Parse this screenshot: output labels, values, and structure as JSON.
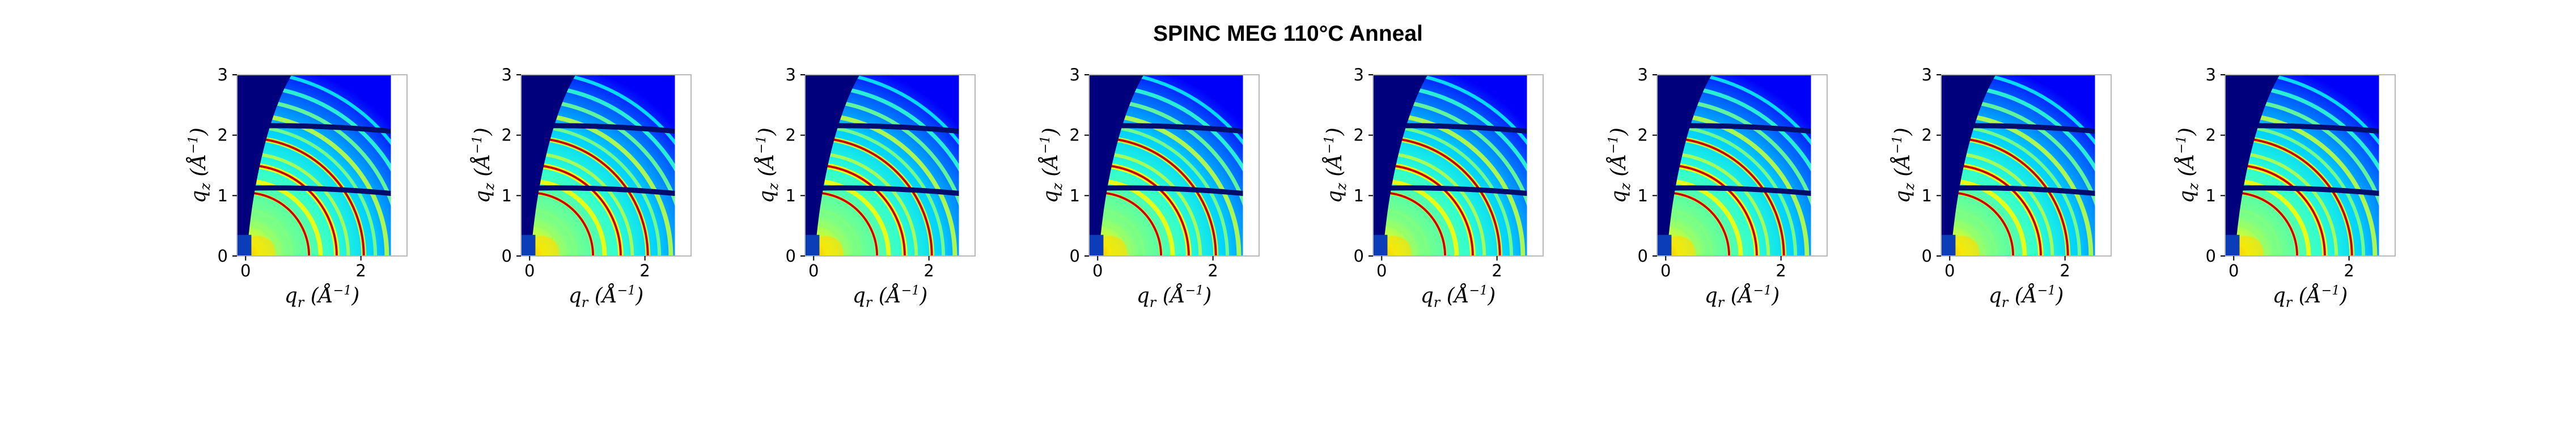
{
  "figure": {
    "title": "SPINC MEG 110°C Anneal"
  },
  "chart_data": [
    {
      "type": "heatmap",
      "panel": 1,
      "xlabel": "q_r (Å^-1)",
      "ylabel": "q_z (Å^-1)",
      "xlim": [
        -0.15,
        2.8
      ],
      "ylim": [
        0,
        3
      ],
      "x_ticks": [
        0,
        2
      ],
      "y_ticks": [
        0,
        1,
        2,
        3
      ],
      "colormap": "jet",
      "detector_gaps_qz": [
        1.12,
        2.15
      ],
      "highlighted_ring_radii": [
        1.1,
        1.58,
        2.05
      ],
      "highlight_color": "#c80000"
    },
    {
      "type": "heatmap",
      "panel": 2,
      "xlabel": "q_r (Å^-1)",
      "ylabel": "q_z (Å^-1)",
      "xlim": [
        -0.15,
        2.8
      ],
      "ylim": [
        0,
        3
      ],
      "x_ticks": [
        0,
        2
      ],
      "y_ticks": [
        0,
        1,
        2,
        3
      ],
      "colormap": "jet",
      "detector_gaps_qz": [
        1.12,
        2.15
      ],
      "highlighted_ring_radii": [
        1.1,
        1.58,
        2.05
      ],
      "highlight_color": "#c80000"
    },
    {
      "type": "heatmap",
      "panel": 3,
      "xlabel": "q_r (Å^-1)",
      "ylabel": "q_z (Å^-1)",
      "xlim": [
        -0.15,
        2.8
      ],
      "ylim": [
        0,
        3
      ],
      "x_ticks": [
        0,
        2
      ],
      "y_ticks": [
        0,
        1,
        2,
        3
      ],
      "colormap": "jet",
      "detector_gaps_qz": [
        1.12,
        2.15
      ],
      "highlighted_ring_radii": [
        1.1,
        1.58,
        2.05
      ],
      "highlight_color": "#c80000"
    },
    {
      "type": "heatmap",
      "panel": 4,
      "xlabel": "q_r (Å^-1)",
      "ylabel": "q_z (Å^-1)",
      "xlim": [
        -0.15,
        2.8
      ],
      "ylim": [
        0,
        3
      ],
      "x_ticks": [
        0,
        2
      ],
      "y_ticks": [
        0,
        1,
        2,
        3
      ],
      "colormap": "jet",
      "detector_gaps_qz": [
        1.12,
        2.15
      ],
      "highlighted_ring_radii": [
        1.1,
        1.58,
        2.05
      ],
      "highlight_color": "#c80000"
    },
    {
      "type": "heatmap",
      "panel": 5,
      "xlabel": "q_r (Å^-1)",
      "ylabel": "q_z (Å^-1)",
      "xlim": [
        -0.15,
        2.8
      ],
      "ylim": [
        0,
        3
      ],
      "x_ticks": [
        0,
        2
      ],
      "y_ticks": [
        0,
        1,
        2,
        3
      ],
      "colormap": "jet",
      "detector_gaps_qz": [
        1.12,
        2.15
      ],
      "highlighted_ring_radii": [
        1.1,
        1.58,
        2.05
      ],
      "highlight_color": "#c80000"
    },
    {
      "type": "heatmap",
      "panel": 6,
      "xlabel": "q_r (Å^-1)",
      "ylabel": "q_z (Å^-1)",
      "xlim": [
        -0.15,
        2.8
      ],
      "ylim": [
        0,
        3
      ],
      "x_ticks": [
        0,
        2
      ],
      "y_ticks": [
        0,
        1,
        2,
        3
      ],
      "colormap": "jet",
      "detector_gaps_qz": [
        1.12,
        2.15
      ],
      "highlighted_ring_radii": [
        1.1,
        1.58,
        2.05
      ],
      "highlight_color": "#c80000"
    },
    {
      "type": "heatmap",
      "panel": 7,
      "xlabel": "q_r (Å^-1)",
      "ylabel": "q_z (Å^-1)",
      "xlim": [
        -0.15,
        2.8
      ],
      "ylim": [
        0,
        3
      ],
      "x_ticks": [
        0,
        2
      ],
      "y_ticks": [
        0,
        1,
        2,
        3
      ],
      "colormap": "jet",
      "detector_gaps_qz": [
        1.12,
        2.15
      ],
      "highlighted_ring_radii": [
        1.1,
        1.58,
        2.05
      ],
      "highlight_color": "#c80000"
    },
    {
      "type": "heatmap",
      "panel": 8,
      "xlabel": "q_r (Å^-1)",
      "ylabel": "q_z (Å^-1)",
      "xlim": [
        -0.15,
        2.8
      ],
      "ylim": [
        0,
        3
      ],
      "x_ticks": [
        0,
        2
      ],
      "y_ticks": [
        0,
        1,
        2,
        3
      ],
      "colormap": "jet",
      "detector_gaps_qz": [
        1.12,
        2.15
      ],
      "highlighted_ring_radii": [
        1.1,
        1.58,
        2.05
      ],
      "highlight_color": "#c80000"
    }
  ]
}
